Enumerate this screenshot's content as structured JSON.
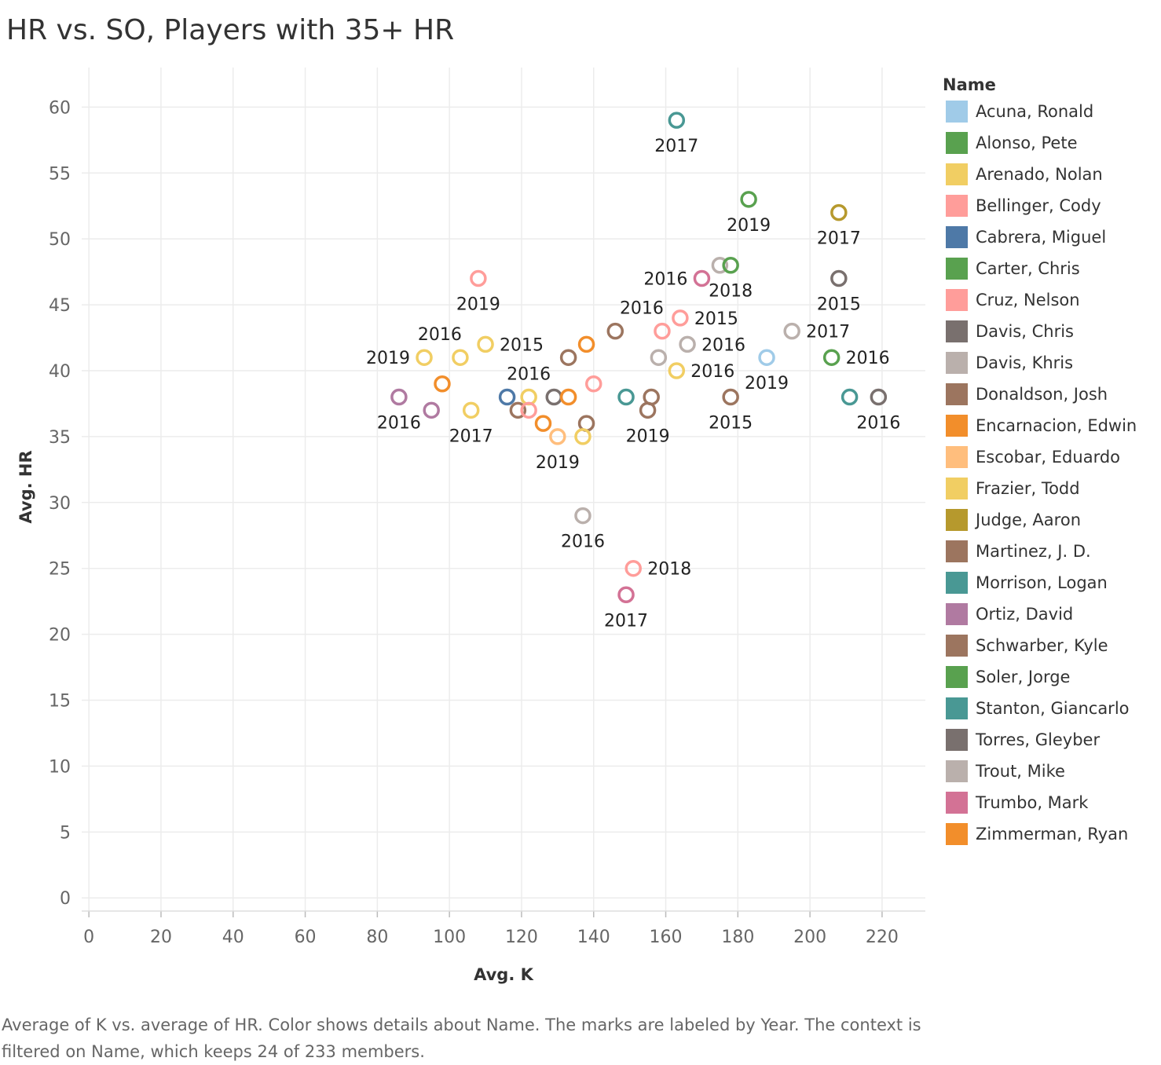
{
  "title": "HR vs. SO, Players with 35+ HR",
  "caption": "Average of K vs. average of HR.  Color shows details about Name.  The marks are labeled by Year. The context is filtered on Name, which keeps 24 of 233 members.",
  "legend": {
    "title": "Name",
    "items": [
      {
        "name": "Acuna, Ronald",
        "color": "#a0cbe8"
      },
      {
        "name": "Alonso, Pete",
        "color": "#59a14f"
      },
      {
        "name": "Arenado, Nolan",
        "color": "#f1ce63"
      },
      {
        "name": "Bellinger, Cody",
        "color": "#ff9d9a"
      },
      {
        "name": "Cabrera, Miguel",
        "color": "#4e79a7"
      },
      {
        "name": "Carter, Chris",
        "color": "#59a14f"
      },
      {
        "name": "Cruz, Nelson",
        "color": "#ff9d9a"
      },
      {
        "name": "Davis, Chris",
        "color": "#79706e"
      },
      {
        "name": "Davis, Khris",
        "color": "#bab0ac"
      },
      {
        "name": "Donaldson, Josh",
        "color": "#9c755f"
      },
      {
        "name": "Encarnacion, Edwin",
        "color": "#f28e2b"
      },
      {
        "name": "Escobar, Eduardo",
        "color": "#ffbe7d"
      },
      {
        "name": "Frazier, Todd",
        "color": "#f1ce63"
      },
      {
        "name": "Judge, Aaron",
        "color": "#b6992d"
      },
      {
        "name": "Martinez, J. D.",
        "color": "#9c755f"
      },
      {
        "name": "Morrison, Logan",
        "color": "#499894"
      },
      {
        "name": "Ortiz, David",
        "color": "#b07aa1"
      },
      {
        "name": "Schwarber, Kyle",
        "color": "#9c755f"
      },
      {
        "name": "Soler, Jorge",
        "color": "#59a14f"
      },
      {
        "name": "Stanton, Giancarlo",
        "color": "#499894"
      },
      {
        "name": "Torres, Gleyber",
        "color": "#79706e"
      },
      {
        "name": "Trout, Mike",
        "color": "#bab0ac"
      },
      {
        "name": "Trumbo, Mark",
        "color": "#d37295"
      },
      {
        "name": "Zimmerman, Ryan",
        "color": "#f28e2b"
      }
    ]
  },
  "chart_data": {
    "type": "scatter",
    "xlabel": "Avg. K",
    "ylabel": "Avg. HR",
    "xlim": [
      -2,
      232
    ],
    "ylim": [
      -1,
      63
    ],
    "xticks": [
      0,
      20,
      40,
      60,
      80,
      100,
      120,
      140,
      160,
      180,
      200,
      220
    ],
    "yticks": [
      0,
      5,
      10,
      15,
      20,
      25,
      30,
      35,
      40,
      45,
      50,
      55,
      60
    ],
    "grid": true,
    "legend_position": "right",
    "points": [
      {
        "x": 163,
        "y": 59,
        "color": "#499894",
        "label": "2017",
        "lpos": "below"
      },
      {
        "x": 183,
        "y": 53,
        "color": "#59a14f",
        "label": "2019",
        "lpos": "below"
      },
      {
        "x": 208,
        "y": 52,
        "color": "#b6992d",
        "label": "2017",
        "lpos": "below"
      },
      {
        "x": 175,
        "y": 48,
        "color": "#bab0ac",
        "label": "",
        "lpos": ""
      },
      {
        "x": 178,
        "y": 48,
        "color": "#59a14f",
        "label": "2018",
        "lpos": "below"
      },
      {
        "x": 170,
        "y": 47,
        "color": "#d37295",
        "label": "2016",
        "lpos": "left"
      },
      {
        "x": 208,
        "y": 47,
        "color": "#79706e",
        "label": "2015",
        "lpos": "below"
      },
      {
        "x": 108,
        "y": 47,
        "color": "#ff9d9a",
        "label": "2019",
        "lpos": "below"
      },
      {
        "x": 164,
        "y": 44,
        "color": "#ff9d9a",
        "label": "2015",
        "lpos": "right"
      },
      {
        "x": 146,
        "y": 43,
        "color": "#9c755f",
        "label": "",
        "lpos": ""
      },
      {
        "x": 159,
        "y": 43,
        "color": "#ff9d9a",
        "label": "2016",
        "lpos": "aboveleft"
      },
      {
        "x": 195,
        "y": 43,
        "color": "#bab0ac",
        "label": "2017",
        "lpos": "right"
      },
      {
        "x": 110,
        "y": 42,
        "color": "#f1ce63",
        "label": "2015",
        "lpos": "right"
      },
      {
        "x": 138,
        "y": 42,
        "color": "#f28e2b",
        "label": "",
        "lpos": ""
      },
      {
        "x": 166,
        "y": 42,
        "color": "#bab0ac",
        "label": "2016",
        "lpos": "right"
      },
      {
        "x": 93,
        "y": 41,
        "color": "#f1ce63",
        "label": "2019",
        "lpos": "left"
      },
      {
        "x": 103,
        "y": 41,
        "color": "#f1ce63",
        "label": "2016",
        "lpos": "aboveleft"
      },
      {
        "x": 133,
        "y": 41,
        "color": "#9c755f",
        "label": "",
        "lpos": ""
      },
      {
        "x": 158,
        "y": 41,
        "color": "#bab0ac",
        "label": "",
        "lpos": ""
      },
      {
        "x": 188,
        "y": 41,
        "color": "#a0cbe8",
        "label": "2019",
        "lpos": "below"
      },
      {
        "x": 206,
        "y": 41,
        "color": "#59a14f",
        "label": "2016",
        "lpos": "right"
      },
      {
        "x": 163,
        "y": 40,
        "color": "#f1ce63",
        "label": "2016",
        "lpos": "right"
      },
      {
        "x": 98,
        "y": 39,
        "color": "#f28e2b",
        "label": "",
        "lpos": ""
      },
      {
        "x": 140,
        "y": 39,
        "color": "#ff9d9a",
        "label": "",
        "lpos": ""
      },
      {
        "x": 86,
        "y": 38,
        "color": "#b07aa1",
        "label": "2016",
        "lpos": "below"
      },
      {
        "x": 116,
        "y": 38,
        "color": "#4e79a7",
        "label": "",
        "lpos": ""
      },
      {
        "x": 122,
        "y": 38,
        "color": "#f1ce63",
        "label": "2016",
        "lpos": "above"
      },
      {
        "x": 129,
        "y": 38,
        "color": "#79706e",
        "label": "",
        "lpos": ""
      },
      {
        "x": 133,
        "y": 38,
        "color": "#f28e2b",
        "label": "",
        "lpos": ""
      },
      {
        "x": 149,
        "y": 38,
        "color": "#499894",
        "label": "",
        "lpos": ""
      },
      {
        "x": 156,
        "y": 38,
        "color": "#9c755f",
        "label": "",
        "lpos": ""
      },
      {
        "x": 178,
        "y": 38,
        "color": "#9c755f",
        "label": "2015",
        "lpos": "below"
      },
      {
        "x": 211,
        "y": 38,
        "color": "#499894",
        "label": "",
        "lpos": ""
      },
      {
        "x": 219,
        "y": 38,
        "color": "#79706e",
        "label": "2016",
        "lpos": "below"
      },
      {
        "x": 95,
        "y": 37,
        "color": "#b07aa1",
        "label": "",
        "lpos": ""
      },
      {
        "x": 106,
        "y": 37,
        "color": "#f1ce63",
        "label": "2017",
        "lpos": "below"
      },
      {
        "x": 119,
        "y": 37,
        "color": "#9c755f",
        "label": "",
        "lpos": ""
      },
      {
        "x": 122,
        "y": 37,
        "color": "#ff9d9a",
        "label": "",
        "lpos": ""
      },
      {
        "x": 155,
        "y": 37,
        "color": "#9c755f",
        "label": "2019",
        "lpos": "below"
      },
      {
        "x": 126,
        "y": 36,
        "color": "#f28e2b",
        "label": "",
        "lpos": ""
      },
      {
        "x": 138,
        "y": 36,
        "color": "#9c755f",
        "label": "",
        "lpos": ""
      },
      {
        "x": 130,
        "y": 35,
        "color": "#ffbe7d",
        "label": "2019",
        "lpos": "below"
      },
      {
        "x": 137,
        "y": 35,
        "color": "#f1ce63",
        "label": "",
        "lpos": ""
      },
      {
        "x": 137,
        "y": 29,
        "color": "#bab0ac",
        "label": "2016",
        "lpos": "below"
      },
      {
        "x": 151,
        "y": 25,
        "color": "#ff9d9a",
        "label": "2018",
        "lpos": "right"
      },
      {
        "x": 149,
        "y": 23,
        "color": "#d37295",
        "label": "2017",
        "lpos": "below"
      }
    ]
  }
}
